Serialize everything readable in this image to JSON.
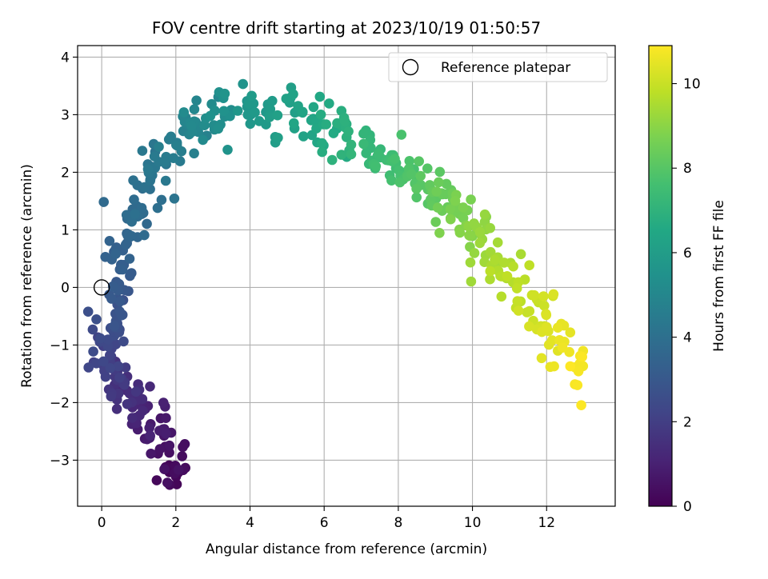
{
  "chart_data": {
    "type": "scatter",
    "title": "FOV centre drift starting at 2023/10/19 01:50:57",
    "xlabel": "Angular distance from reference (arcmin)",
    "ylabel": "Rotation from reference (arcmin)",
    "colorbar_label": "Hours from first FF file",
    "colormap": "viridis",
    "xlim": [
      -0.65,
      13.85
    ],
    "ylim": [
      -3.8,
      4.2
    ],
    "clim": [
      0,
      10.9
    ],
    "xticks": [
      "0",
      "2",
      "4",
      "6",
      "8",
      "10",
      "12"
    ],
    "yticks": [
      "−3",
      "−2",
      "−1",
      "0",
      "1",
      "2",
      "3",
      "4"
    ],
    "cticks": [
      "0",
      "2",
      "4",
      "6",
      "8",
      "10"
    ],
    "grid": true,
    "legend": {
      "position": "top-right",
      "entries": [
        "Reference platepar"
      ]
    },
    "reference_point": {
      "x": 0,
      "y": 0
    },
    "arc_series": [
      {
        "t": 0.1,
        "x": 1.9,
        "y": -3.4
      },
      {
        "t": 0.3,
        "x": 2.05,
        "y": -3.1
      },
      {
        "t": 0.6,
        "x": 1.7,
        "y": -2.7
      },
      {
        "t": 0.9,
        "x": 1.4,
        "y": -2.4
      },
      {
        "t": 1.2,
        "x": 1.0,
        "y": -2.05
      },
      {
        "t": 1.5,
        "x": 0.6,
        "y": -1.85
      },
      {
        "t": 1.9,
        "x": 0.3,
        "y": -1.6
      },
      {
        "t": 2.3,
        "x": 0.1,
        "y": -1.1
      },
      {
        "t": 2.7,
        "x": 0.2,
        "y": -0.55
      },
      {
        "t": 3.0,
        "x": 0.45,
        "y": -0.1
      },
      {
        "t": 3.2,
        "x": 0.55,
        "y": 0.35
      },
      {
        "t": 3.5,
        "x": 0.65,
        "y": 0.85
      },
      {
        "t": 3.8,
        "x": 0.95,
        "y": 1.35
      },
      {
        "t": 4.1,
        "x": 1.2,
        "y": 1.85
      },
      {
        "t": 4.4,
        "x": 1.6,
        "y": 2.2
      },
      {
        "t": 4.7,
        "x": 2.1,
        "y": 2.65
      },
      {
        "t": 5.0,
        "x": 2.6,
        "y": 2.95
      },
      {
        "t": 5.4,
        "x": 3.3,
        "y": 3.05
      },
      {
        "t": 5.8,
        "x": 4.2,
        "y": 3.1
      },
      {
        "t": 6.2,
        "x": 5.2,
        "y": 3.0
      },
      {
        "t": 6.6,
        "x": 6.0,
        "y": 2.8
      },
      {
        "t": 7.0,
        "x": 6.8,
        "y": 2.55
      },
      {
        "t": 7.4,
        "x": 7.6,
        "y": 2.25
      },
      {
        "t": 7.8,
        "x": 8.3,
        "y": 1.95
      },
      {
        "t": 8.2,
        "x": 8.9,
        "y": 1.6
      },
      {
        "t": 8.6,
        "x": 9.5,
        "y": 1.3
      },
      {
        "t": 9.0,
        "x": 10.0,
        "y": 0.95
      },
      {
        "t": 9.4,
        "x": 10.6,
        "y": 0.55
      },
      {
        "t": 9.8,
        "x": 11.2,
        "y": 0.05
      },
      {
        "t": 10.2,
        "x": 11.9,
        "y": -0.45
      },
      {
        "t": 10.6,
        "x": 12.5,
        "y": -1.05
      },
      {
        "t": 10.9,
        "x": 12.95,
        "y": -1.6
      }
    ],
    "sample_count": 520,
    "scatter_spread_arcmin": 0.2
  }
}
